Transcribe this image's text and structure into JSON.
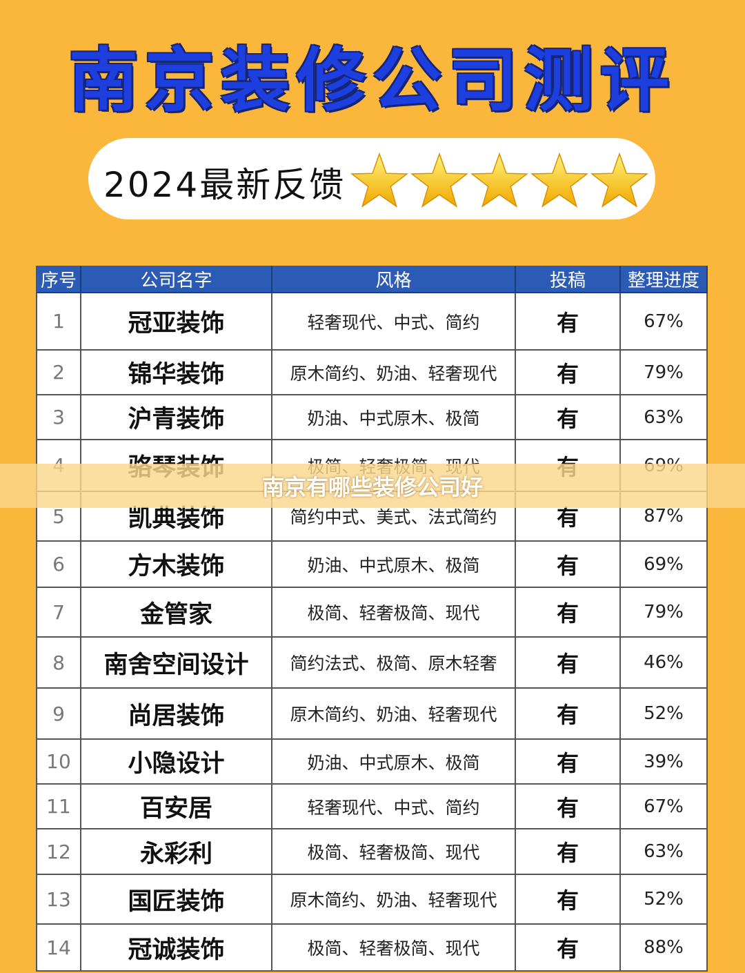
{
  "header": {
    "title": "南京装修公司测评",
    "subtitle": "2024最新反馈"
  },
  "table": {
    "columns": [
      "序号",
      "公司名字",
      "风格",
      "投稿",
      "整理进度"
    ],
    "rows": [
      [
        "1",
        "冠亚装饰",
        "轻奢现代、中式、简约",
        "有",
        "67%"
      ],
      [
        "2",
        "锦华装饰",
        "原木简约、奶油、轻奢现代",
        "有",
        "79%"
      ],
      [
        "3",
        "沪青装饰",
        "奶油、中式原木、极简",
        "有",
        "63%"
      ],
      [
        "4",
        "骆琴装饰",
        "极简、轻奢极简、现代",
        "有",
        "69%"
      ],
      [
        "5",
        "凯典装饰",
        "简约中式、美式、法式简约",
        "有",
        "87%"
      ],
      [
        "6",
        "方木装饰",
        "奶油、中式原木、极简",
        "有",
        "69%"
      ],
      [
        "7",
        "金管家",
        "极简、轻奢极简、现代",
        "有",
        "79%"
      ],
      [
        "8",
        "南舍空间设计",
        "简约法式、极简、原木轻奢",
        "有",
        "46%"
      ],
      [
        "9",
        "尚居装饰",
        "原木简约、奶油、轻奢现代",
        "有",
        "52%"
      ],
      [
        "10",
        "小隐设计",
        "奶油、中式原木、极简",
        "有",
        "39%"
      ],
      [
        "11",
        "百安居",
        "轻奢现代、中式、简约",
        "有",
        "67%"
      ],
      [
        "12",
        "永彩利",
        "极简、轻奢极简、现代",
        "有",
        "63%"
      ],
      [
        "13",
        "国匠装饰",
        "原木简约、奶油、轻奢现代",
        "有",
        "52%"
      ],
      [
        "14",
        "冠诚装饰",
        "极简、轻奢极简、现代",
        "有",
        "88%"
      ]
    ]
  },
  "overlay": {
    "caption": "南京有哪些装修公司好"
  }
}
